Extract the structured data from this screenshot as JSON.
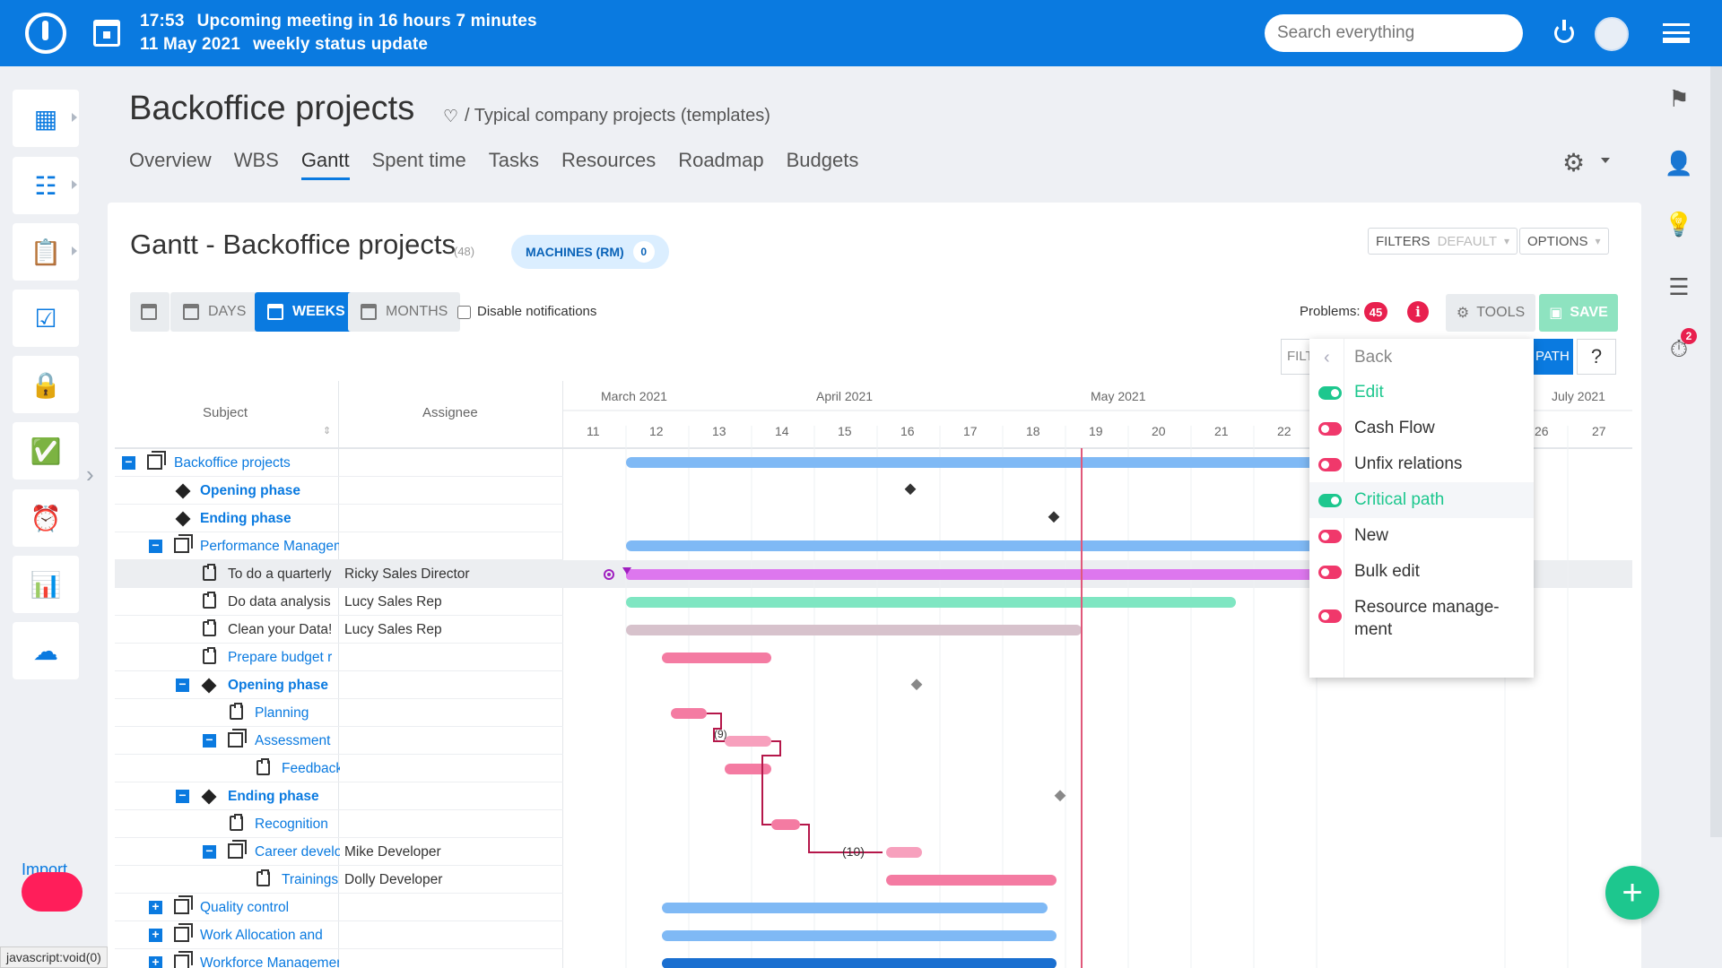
{
  "topbar": {
    "time": "17:53",
    "meeting": "Upcoming meeting in 16 hours 7 minutes",
    "date": "11 May 2021",
    "meeting_title": "weekly status update",
    "search_placeholder": "Search everything"
  },
  "header": {
    "title": "Backoffice projects",
    "breadcrumb": "/ Typical company projects (templates)",
    "tabs": [
      "Overview",
      "WBS",
      "Gantt",
      "Spent time",
      "Tasks",
      "Resources",
      "Roadmap",
      "Budgets"
    ],
    "active_tab": "Gantt"
  },
  "gantt": {
    "title": "Gantt - Backoffice projects",
    "count": "(48)",
    "machines_label": "MACHINES (RM)",
    "machines_count": "0",
    "filters_label": "FILTERS",
    "filters_value": "DEFAULT",
    "options_label": "OPTIONS",
    "zoom": {
      "days": "DAYS",
      "weeks": "WEEKS",
      "months": "MONTHS"
    },
    "disable_notifications": "Disable notifications",
    "problems_label": "Problems:",
    "problems_count": "45",
    "tools_label": "TOOLS",
    "save_label": "SAVE",
    "filt_label": "FILT",
    "path_label": "PATH",
    "help_label": "?"
  },
  "columns": {
    "subject": "Subject",
    "assignee": "Assignee"
  },
  "timeline": {
    "months": [
      "March 2021",
      "April 2021",
      "May 2021",
      "July 2021"
    ],
    "weeks": [
      "11",
      "12",
      "13",
      "14",
      "15",
      "16",
      "17",
      "18",
      "19",
      "20",
      "21",
      "22",
      "26",
      "27"
    ]
  },
  "rows": [
    {
      "subject": "Backoffice projects",
      "assignee": ""
    },
    {
      "subject": "Opening phase",
      "assignee": ""
    },
    {
      "subject": "Ending phase",
      "assignee": ""
    },
    {
      "subject": "Performance Management",
      "assignee": ""
    },
    {
      "subject": "To do a quarterly",
      "assignee": "Ricky Sales Director"
    },
    {
      "subject": "Do data analysis",
      "assignee": "Lucy Sales Rep"
    },
    {
      "subject": "Clean your Data!",
      "assignee": "Lucy Sales Rep"
    },
    {
      "subject": "Prepare budget r",
      "assignee": ""
    },
    {
      "subject": "Opening phase",
      "assignee": ""
    },
    {
      "subject": "Planning",
      "assignee": ""
    },
    {
      "subject": "Assessment",
      "assignee": ""
    },
    {
      "subject": "Feedback",
      "assignee": ""
    },
    {
      "subject": "Ending phase",
      "assignee": ""
    },
    {
      "subject": "Recognition",
      "assignee": ""
    },
    {
      "subject": "Career development",
      "assignee": "Mike Developer"
    },
    {
      "subject": "Trainings",
      "assignee": "Dolly Developer"
    },
    {
      "subject": "Quality control",
      "assignee": ""
    },
    {
      "subject": "Work Allocation and",
      "assignee": ""
    },
    {
      "subject": "Workforce Management",
      "assignee": ""
    }
  ],
  "relation_labels": [
    "(9)",
    "(10)"
  ],
  "menu": {
    "back": "Back",
    "items": [
      {
        "label": "Edit",
        "on": true
      },
      {
        "label": "Cash Flow",
        "on": false
      },
      {
        "label": "Unfix relations",
        "on": false
      },
      {
        "label": "Critical path",
        "on": true
      },
      {
        "label": "New",
        "on": false
      },
      {
        "label": "Bulk edit",
        "on": false
      },
      {
        "label": "Resource manage-",
        "label2": "ment",
        "on": false
      }
    ]
  },
  "sidebar": {
    "import_label": "Import"
  },
  "right_rail": {
    "timer_badge": "2"
  },
  "status_bar": "javascript:void(0)",
  "colors": {
    "brand": "#0a7ae0",
    "danger": "#e8204e",
    "success": "#1dc78e"
  }
}
